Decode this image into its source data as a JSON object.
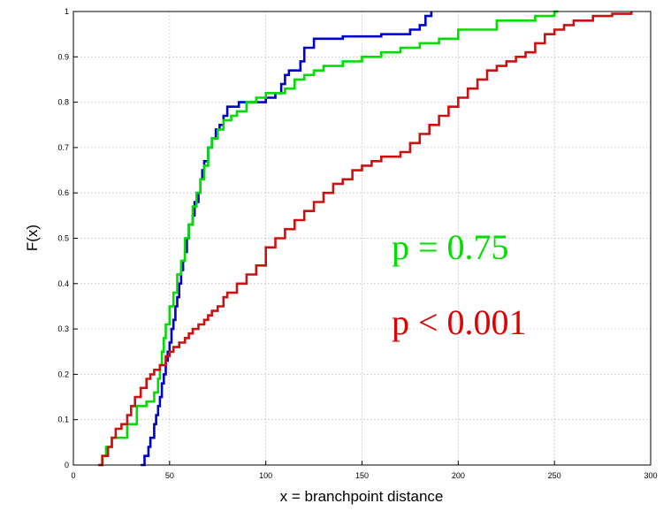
{
  "chart_data": {
    "type": "line",
    "step": true,
    "xlabel": "x = branchpoint distance",
    "ylabel": "F(x)",
    "xlim": [
      0,
      300
    ],
    "ylim": [
      0,
      1
    ],
    "xticks": [
      0,
      50,
      100,
      150,
      200,
      250,
      300
    ],
    "yticks": [
      0,
      0.1,
      0.2,
      0.3,
      0.4,
      0.5,
      0.6,
      0.7,
      0.8,
      0.9,
      1
    ],
    "ytick_labels": [
      "0",
      "0.1",
      "0.2",
      "0.3",
      "0.4",
      "0.5",
      "0.6",
      "0.7",
      "0.8",
      "0.9",
      "1"
    ],
    "grid": true,
    "annotations": [
      {
        "text": "p = 0.75",
        "color": "#00dd00"
      },
      {
        "text": "p < 0.001",
        "color": "#dd0000"
      }
    ],
    "series": [
      {
        "color": "#0000cc",
        "x": [
          35,
          37,
          39,
          40,
          42,
          43,
          44,
          45,
          46,
          47,
          48,
          49,
          50,
          51,
          52,
          53,
          54,
          55,
          56,
          57,
          58,
          59,
          60,
          62,
          63,
          65,
          66,
          67,
          68,
          70,
          72,
          74,
          76,
          78,
          80,
          82,
          84,
          86,
          88,
          90,
          95,
          100,
          105,
          108,
          110,
          112,
          115,
          118,
          120,
          125,
          130,
          140,
          160,
          175,
          180,
          183,
          186
        ],
        "y": [
          0,
          0.02,
          0.04,
          0.06,
          0.09,
          0.11,
          0.13,
          0.15,
          0.18,
          0.2,
          0.23,
          0.25,
          0.27,
          0.3,
          0.32,
          0.35,
          0.37,
          0.4,
          0.43,
          0.45,
          0.47,
          0.5,
          0.53,
          0.55,
          0.58,
          0.6,
          0.63,
          0.65,
          0.67,
          0.7,
          0.72,
          0.74,
          0.75,
          0.77,
          0.79,
          0.79,
          0.79,
          0.8,
          0.8,
          0.8,
          0.8,
          0.81,
          0.82,
          0.84,
          0.86,
          0.87,
          0.87,
          0.89,
          0.92,
          0.94,
          0.94,
          0.945,
          0.95,
          0.96,
          0.97,
          0.99,
          1.0
        ]
      },
      {
        "color": "#00dd00",
        "x": [
          13,
          15,
          17,
          20,
          25,
          28,
          30,
          33,
          38,
          40,
          42,
          44,
          45,
          46,
          47,
          48,
          50,
          52,
          54,
          56,
          58,
          60,
          62,
          64,
          66,
          68,
          70,
          72,
          75,
          78,
          82,
          85,
          90,
          95,
          100,
          110,
          115,
          120,
          125,
          130,
          140,
          150,
          160,
          170,
          180,
          190,
          200,
          220,
          240,
          250,
          252
        ],
        "y": [
          0,
          0.02,
          0.04,
          0.06,
          0.06,
          0.09,
          0.09,
          0.13,
          0.14,
          0.14,
          0.16,
          0.19,
          0.22,
          0.25,
          0.28,
          0.31,
          0.35,
          0.38,
          0.42,
          0.45,
          0.5,
          0.53,
          0.57,
          0.6,
          0.63,
          0.66,
          0.7,
          0.72,
          0.74,
          0.76,
          0.77,
          0.78,
          0.8,
          0.81,
          0.82,
          0.83,
          0.85,
          0.86,
          0.87,
          0.88,
          0.89,
          0.9,
          0.91,
          0.92,
          0.93,
          0.94,
          0.96,
          0.98,
          0.99,
          1.0,
          1.0
        ]
      },
      {
        "color": "#cc1111",
        "x": [
          13,
          15,
          18,
          20,
          22,
          25,
          28,
          30,
          32,
          35,
          38,
          40,
          42,
          45,
          48,
          50,
          52,
          55,
          58,
          60,
          62,
          65,
          68,
          70,
          72,
          75,
          78,
          80,
          85,
          90,
          95,
          100,
          105,
          110,
          115,
          120,
          125,
          130,
          135,
          140,
          145,
          150,
          155,
          160,
          165,
          170,
          175,
          180,
          185,
          190,
          195,
          200,
          205,
          210,
          215,
          220,
          225,
          230,
          235,
          240,
          245,
          250,
          255,
          260,
          270,
          280,
          290
        ],
        "y": [
          0,
          0.02,
          0.04,
          0.06,
          0.08,
          0.09,
          0.11,
          0.13,
          0.15,
          0.17,
          0.19,
          0.2,
          0.21,
          0.22,
          0.24,
          0.25,
          0.26,
          0.27,
          0.28,
          0.29,
          0.3,
          0.31,
          0.32,
          0.33,
          0.34,
          0.35,
          0.37,
          0.38,
          0.4,
          0.42,
          0.44,
          0.48,
          0.5,
          0.52,
          0.54,
          0.56,
          0.58,
          0.6,
          0.62,
          0.63,
          0.65,
          0.66,
          0.67,
          0.68,
          0.68,
          0.69,
          0.71,
          0.73,
          0.75,
          0.77,
          0.79,
          0.81,
          0.83,
          0.85,
          0.87,
          0.88,
          0.89,
          0.9,
          0.91,
          0.93,
          0.95,
          0.96,
          0.97,
          0.98,
          0.99,
          0.995,
          1.0
        ]
      }
    ]
  }
}
